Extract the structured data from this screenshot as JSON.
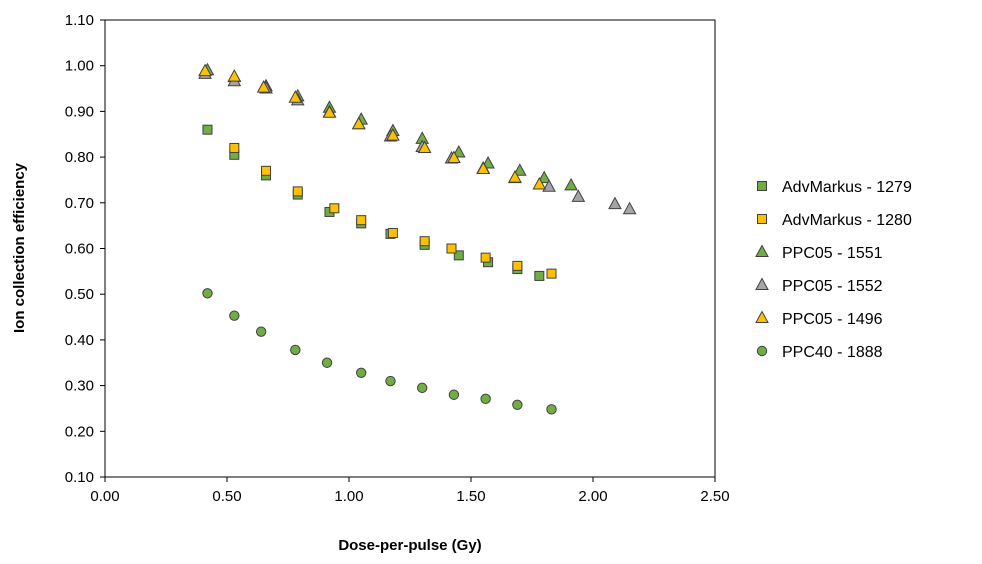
{
  "chart_data": {
    "type": "scatter",
    "title": "",
    "xlabel": "Dose-per-pulse (Gy)",
    "ylabel": "Ion collection efficiency",
    "xlim": [
      0.0,
      2.5
    ],
    "ylim": [
      0.1,
      1.1
    ],
    "x_ticks": [
      "0.00",
      "0.50",
      "1.00",
      "1.50",
      "2.00",
      "2.50"
    ],
    "y_ticks": [
      "0.10",
      "0.20",
      "0.30",
      "0.40",
      "0.50",
      "0.60",
      "0.70",
      "0.80",
      "0.90",
      "1.00",
      "1.10"
    ],
    "grid": false,
    "legend_position": "right",
    "series": [
      {
        "name": "AdvMarkus - 1279",
        "marker": "square",
        "color": "#70ad47",
        "points": [
          [
            0.42,
            0.86
          ],
          [
            0.53,
            0.805
          ],
          [
            0.66,
            0.76
          ],
          [
            0.79,
            0.718
          ],
          [
            0.92,
            0.68
          ],
          [
            1.05,
            0.655
          ],
          [
            1.17,
            0.632
          ],
          [
            1.31,
            0.608
          ],
          [
            1.45,
            0.585
          ],
          [
            1.57,
            0.57
          ],
          [
            1.69,
            0.555
          ],
          [
            1.78,
            0.54
          ]
        ]
      },
      {
        "name": "AdvMarkus - 1280",
        "marker": "square",
        "color": "#ffc000",
        "points": [
          [
            0.53,
            0.82
          ],
          [
            0.66,
            0.77
          ],
          [
            0.79,
            0.725
          ],
          [
            0.94,
            0.688
          ],
          [
            1.05,
            0.662
          ],
          [
            1.18,
            0.634
          ],
          [
            1.31,
            0.616
          ],
          [
            1.42,
            0.6
          ],
          [
            1.56,
            0.58
          ],
          [
            1.69,
            0.562
          ],
          [
            1.83,
            0.545
          ]
        ]
      },
      {
        "name": "PPC05 - 1551",
        "marker": "triangle",
        "color": "#70ad47",
        "points": [
          [
            0.42,
            0.99
          ],
          [
            0.53,
            0.975
          ],
          [
            0.66,
            0.955
          ],
          [
            0.79,
            0.933
          ],
          [
            0.92,
            0.908
          ],
          [
            1.05,
            0.882
          ],
          [
            1.18,
            0.857
          ],
          [
            1.3,
            0.84
          ],
          [
            1.45,
            0.81
          ],
          [
            1.57,
            0.786
          ],
          [
            1.7,
            0.77
          ],
          [
            1.8,
            0.754
          ],
          [
            1.91,
            0.738
          ]
        ]
      },
      {
        "name": "PPC05 - 1552",
        "marker": "triangle",
        "color": "#a5a5a5",
        "points": [
          [
            0.41,
            0.982
          ],
          [
            0.53,
            0.966
          ],
          [
            0.66,
            0.95
          ],
          [
            0.79,
            0.924
          ],
          [
            0.92,
            0.898
          ],
          [
            1.04,
            0.872
          ],
          [
            1.17,
            0.845
          ],
          [
            1.3,
            0.822
          ],
          [
            1.42,
            0.797
          ],
          [
            1.55,
            0.775
          ],
          [
            1.68,
            0.754
          ],
          [
            1.82,
            0.735
          ],
          [
            1.94,
            0.713
          ],
          [
            2.09,
            0.697
          ],
          [
            2.15,
            0.686
          ]
        ]
      },
      {
        "name": "PPC05 - 1496",
        "marker": "triangle",
        "color": "#ffc000",
        "points": [
          [
            0.41,
            0.988
          ],
          [
            0.53,
            0.976
          ],
          [
            0.65,
            0.952
          ],
          [
            0.78,
            0.93
          ],
          [
            0.92,
            0.897
          ],
          [
            1.04,
            0.872
          ],
          [
            1.18,
            0.847
          ],
          [
            1.31,
            0.82
          ],
          [
            1.43,
            0.798
          ],
          [
            1.55,
            0.774
          ],
          [
            1.68,
            0.755
          ],
          [
            1.78,
            0.74
          ]
        ]
      },
      {
        "name": "PPC40 - 1888",
        "marker": "circle",
        "color": "#70ad47",
        "points": [
          [
            0.42,
            0.502
          ],
          [
            0.53,
            0.453
          ],
          [
            0.64,
            0.418
          ],
          [
            0.78,
            0.378
          ],
          [
            0.91,
            0.35
          ],
          [
            1.05,
            0.328
          ],
          [
            1.17,
            0.31
          ],
          [
            1.3,
            0.295
          ],
          [
            1.43,
            0.28
          ],
          [
            1.56,
            0.271
          ],
          [
            1.69,
            0.258
          ],
          [
            1.83,
            0.248
          ]
        ]
      }
    ]
  }
}
